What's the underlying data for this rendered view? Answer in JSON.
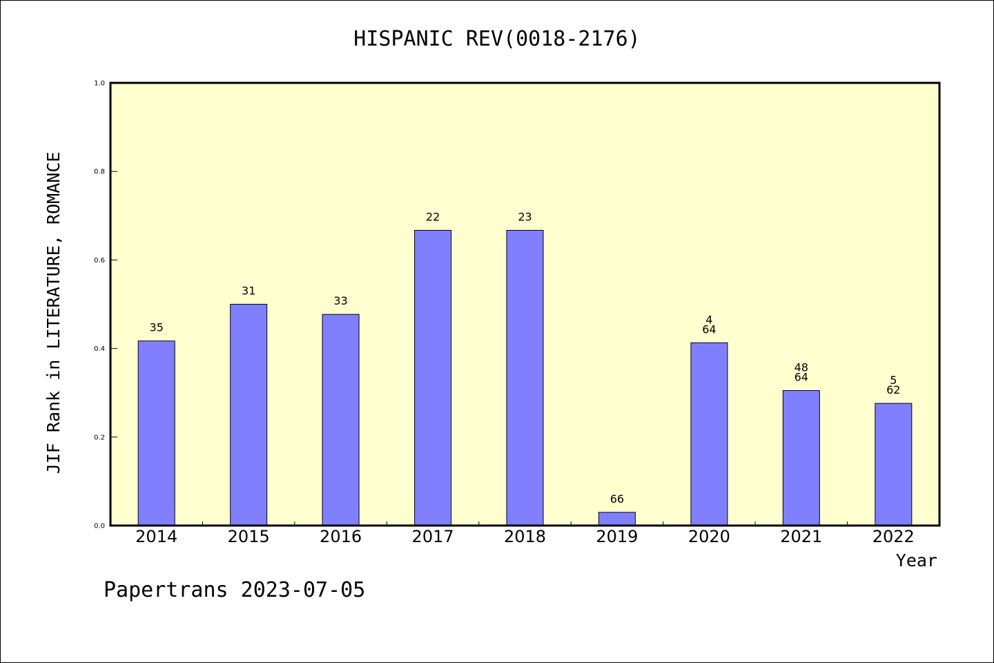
{
  "chart_data": {
    "type": "bar",
    "title": "HISPANIC REV(0018-2176)",
    "ylabel": "JIF Rank in LITERATURE, ROMANCE",
    "xlabel": "Year",
    "ylim": [
      0,
      1.0
    ],
    "yticks": [
      "0.0",
      "0.2",
      "0.4",
      "0.6",
      "0.8",
      "1.0"
    ],
    "categories": [
      "2014",
      "2015",
      "2016",
      "2017",
      "2018",
      "2019",
      "2020",
      "2021",
      "2022"
    ],
    "values": [
      0.417,
      0.5,
      0.477,
      0.667,
      0.667,
      0.03,
      0.413,
      0.305,
      0.276
    ],
    "bar_labels": [
      [
        "35"
      ],
      [
        "31"
      ],
      [
        "33"
      ],
      [
        "22"
      ],
      [
        "23"
      ],
      [
        "66"
      ],
      [
        "4",
        "64"
      ],
      [
        "48",
        "64"
      ],
      [
        "5",
        "62"
      ]
    ],
    "grid": false,
    "colors": {
      "plot_background": "#ffffd0",
      "bar_fill": "#8080ff",
      "bar_stroke": "#000000"
    }
  },
  "footer": {
    "text": "Papertrans 2023-07-05"
  }
}
